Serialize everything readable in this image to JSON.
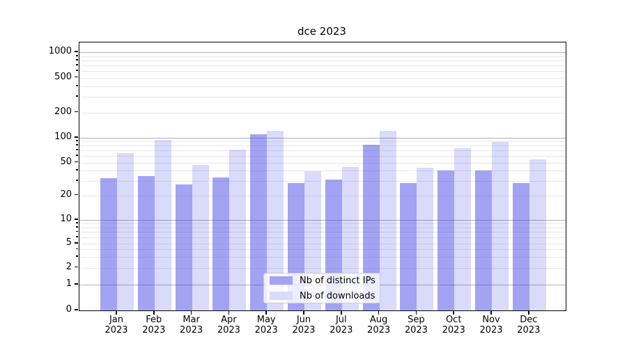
{
  "chart_data": {
    "type": "bar",
    "title": "dce 2023",
    "categories": [
      "Jan",
      "Feb",
      "Mar",
      "Apr",
      "May",
      "Jun",
      "Jul",
      "Aug",
      "Sep",
      "Oct",
      "Nov",
      "Dec"
    ],
    "x_year_label": "2023",
    "series": [
      {
        "name": "Nb of distinct IPs",
        "color": "rgba(55,55,228,0.46)",
        "solid_color": "#a3a3f2",
        "values": [
          32,
          34,
          27,
          33,
          110,
          28,
          31,
          82,
          28,
          40,
          40,
          28
        ]
      },
      {
        "name": "Nb of downloads",
        "color": "rgba(55,55,228,0.185)",
        "solid_color": "#dadafa",
        "values": [
          65,
          94,
          47,
          72,
          121,
          39,
          44,
          121,
          43,
          75,
          88,
          55
        ]
      }
    ],
    "y_ticks": [
      0,
      1,
      2,
      5,
      10,
      20,
      50,
      100,
      200,
      500,
      1000
    ],
    "y_scale": "symlog",
    "ylim": [
      0,
      1300
    ],
    "grid": true,
    "legend_position": "lower center"
  }
}
